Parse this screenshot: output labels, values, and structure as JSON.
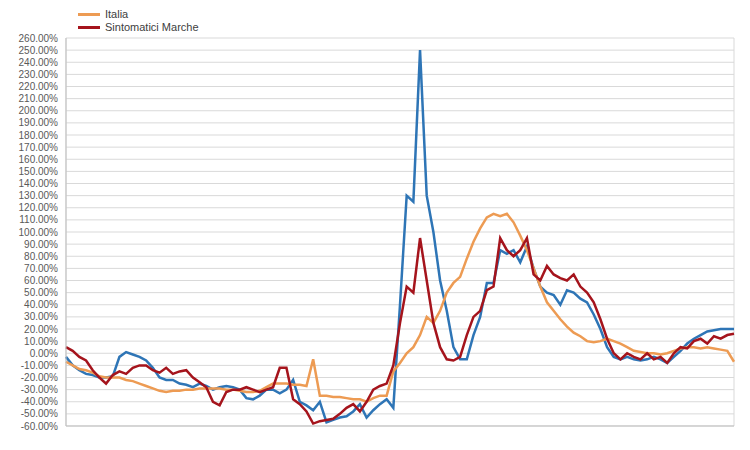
{
  "chart_data": {
    "type": "line",
    "categories": [
      null,
      null,
      null,
      null,
      null,
      null,
      null,
      null,
      null,
      null,
      null,
      null,
      null,
      null,
      null,
      null,
      null,
      null,
      null,
      null,
      null,
      null,
      null,
      null,
      null,
      null,
      null,
      null,
      null,
      null,
      null,
      null,
      null,
      null,
      null,
      null,
      null,
      null,
      null,
      null,
      null,
      null,
      null,
      null,
      null,
      null,
      null,
      null,
      null,
      null,
      null,
      null,
      null,
      null,
      null,
      null,
      null,
      null,
      null,
      null,
      null,
      null,
      null,
      null,
      null,
      null,
      null,
      null,
      null,
      null,
      null,
      null,
      null,
      null,
      null,
      null,
      null,
      null,
      null,
      null,
      null,
      null,
      null,
      null,
      null,
      null,
      null,
      null,
      null,
      null,
      null,
      null,
      null,
      null,
      null,
      null,
      null,
      null,
      null,
      null,
      null
    ],
    "series": [
      {
        "color": "#2e75b6",
        "values": [
          -3,
          -10,
          -14,
          -17,
          -18,
          -20,
          -20,
          -19,
          -3,
          1,
          -1,
          -3,
          -6,
          -12,
          -20,
          -22,
          -22,
          -25,
          -26,
          -28,
          -25,
          -27,
          -30,
          -28,
          -27,
          -28,
          -30,
          -37,
          -38,
          -35,
          -30,
          -30,
          -33,
          -30,
          -22,
          -40,
          -43,
          -47,
          -40,
          -57,
          -55,
          -53,
          -52,
          -48,
          -42,
          -53,
          -47,
          -42,
          -38,
          -45,
          40,
          130,
          125,
          250,
          130,
          100,
          60,
          35,
          5,
          -5,
          -5,
          15,
          30,
          58,
          58,
          85,
          82,
          85,
          75,
          88,
          70,
          55,
          50,
          48,
          40,
          52,
          50,
          45,
          42,
          32,
          20,
          5,
          -3,
          -5,
          -3,
          -5,
          -6,
          -5,
          -3,
          -5,
          -8,
          -3,
          2,
          8,
          12,
          15,
          18,
          19,
          20,
          20,
          20
        ]
      },
      {
        "name": "Italia",
        "color": "#ed9b53",
        "values": [
          -7,
          -10,
          -13,
          -14,
          -16,
          -19,
          -20,
          -20,
          -20,
          -22,
          -23,
          -25,
          -27,
          -29,
          -31,
          -32,
          -31,
          -31,
          -30,
          -30,
          -29,
          -29,
          -29,
          -29,
          -30,
          -30,
          -31,
          -32,
          -32,
          -31,
          -28,
          -25,
          -25,
          -25,
          -26,
          -26,
          -27,
          -5,
          -35,
          -35,
          -36,
          -36,
          -37,
          -38,
          -38,
          -40,
          -37,
          -35,
          -35,
          -15,
          -8,
          0,
          5,
          15,
          30,
          25,
          35,
          50,
          58,
          63,
          78,
          92,
          103,
          112,
          115,
          113,
          115,
          108,
          97,
          85,
          70,
          55,
          42,
          35,
          28,
          22,
          17,
          14,
          10,
          9,
          10,
          12,
          10,
          8,
          5,
          2,
          1,
          0,
          0,
          -1,
          0,
          2,
          4,
          5,
          5,
          4,
          5,
          4,
          3,
          2,
          -7
        ]
      },
      {
        "name": "Sintomatici Marche",
        "color": "#a5141c",
        "values": [
          5,
          2,
          -3,
          -6,
          -14,
          -20,
          -25,
          -18,
          -15,
          -17,
          -12,
          -10,
          -10,
          -14,
          -16,
          -12,
          -17,
          -15,
          -14,
          -20,
          -24,
          -28,
          -40,
          -43,
          -32,
          -30,
          -30,
          -28,
          -30,
          -32,
          -30,
          -28,
          -12,
          -12,
          -38,
          -42,
          -48,
          -58,
          -56,
          -55,
          -54,
          -50,
          -45,
          -42,
          -48,
          -40,
          -30,
          -27,
          -25,
          -10,
          25,
          55,
          50,
          95,
          60,
          25,
          5,
          -5,
          -6,
          -3,
          15,
          30,
          35,
          52,
          55,
          95,
          85,
          80,
          85,
          95,
          65,
          60,
          72,
          65,
          62,
          60,
          65,
          55,
          50,
          42,
          28,
          12,
          0,
          -5,
          0,
          -3,
          -5,
          0,
          -5,
          -3,
          -8,
          0,
          5,
          4,
          10,
          12,
          8,
          14,
          12,
          15,
          16
        ]
      }
    ],
    "ylim": [
      -60,
      260
    ],
    "yticks": [
      {
        "value": 260,
        "label": "260.00%"
      },
      {
        "value": 250,
        "label": "250.00%"
      },
      {
        "value": 240,
        "label": "240.00%"
      },
      {
        "value": 230,
        "label": "230.00%"
      },
      {
        "value": 220,
        "label": "220.00%"
      },
      {
        "value": 210,
        "label": "210.00%"
      },
      {
        "value": 200,
        "label": "200.00%"
      },
      {
        "value": 190,
        "label": "190.00%"
      },
      {
        "value": 180,
        "label": "180.00%"
      },
      {
        "value": 170,
        "label": "170.00%"
      },
      {
        "value": 160,
        "label": "160.00%"
      },
      {
        "value": 150,
        "label": "150.00%"
      },
      {
        "value": 140,
        "label": "140.00%"
      },
      {
        "value": 130,
        "label": "130.00%"
      },
      {
        "value": 120,
        "label": "120.00%"
      },
      {
        "value": 110,
        "label": "110.00%"
      },
      {
        "value": 100,
        "label": "100.00%"
      },
      {
        "value": 90,
        "label": "90.00%"
      },
      {
        "value": 80,
        "label": "80.00%"
      },
      {
        "value": 70,
        "label": "70.00%"
      },
      {
        "value": 60,
        "label": "60.00%"
      },
      {
        "value": 50,
        "label": "50.00%"
      },
      {
        "value": 40,
        "label": "40.00%"
      },
      {
        "value": 30,
        "label": "30.00%"
      },
      {
        "value": 20,
        "label": "20.00%"
      },
      {
        "value": 10,
        "label": "10.00%"
      },
      {
        "value": 0,
        "label": "0.00%"
      },
      {
        "value": -10,
        "label": "-10.00%"
      },
      {
        "value": -20,
        "label": "-20.00%"
      },
      {
        "value": -30,
        "label": "-30.00%"
      },
      {
        "value": -40,
        "label": "-40.00%"
      },
      {
        "value": -50,
        "label": "-50.00%"
      },
      {
        "value": -60,
        "label": "-60.00%"
      }
    ],
    "grid": true,
    "legend": "upper left",
    "tick_labels": "y"
  }
}
